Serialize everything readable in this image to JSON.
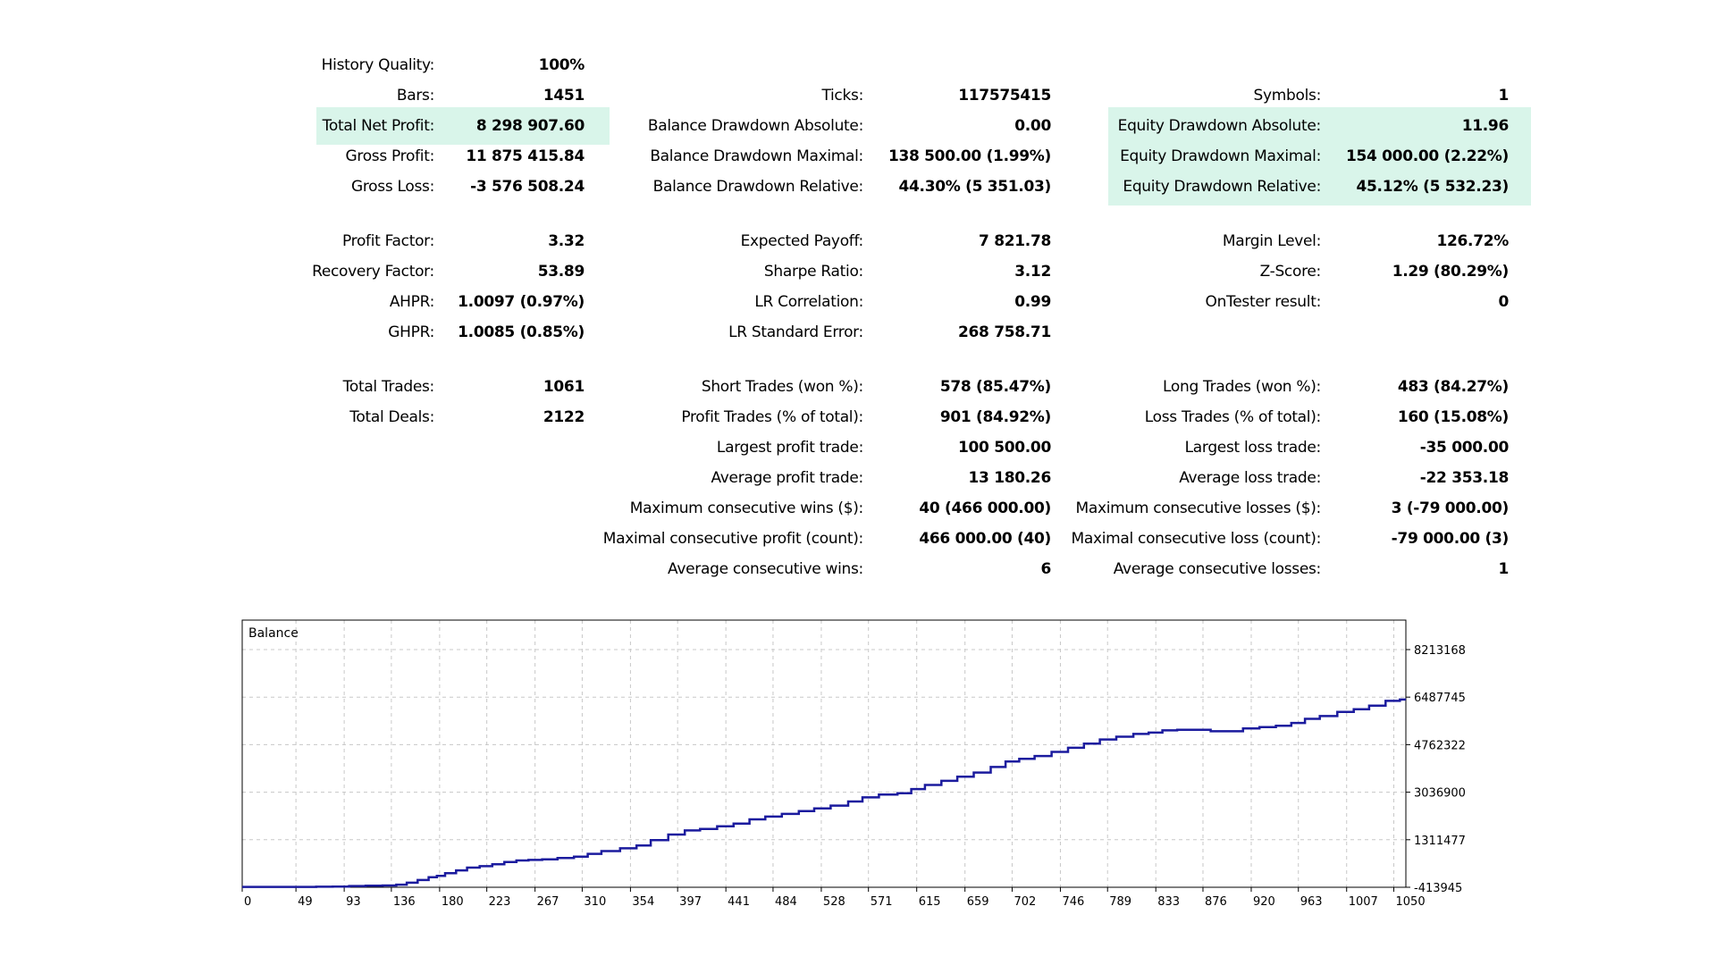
{
  "colors": {
    "highlight": "#d9f5ea",
    "balance_line": "#1b1b9e",
    "grid": "#c8c8c8"
  },
  "stats": {
    "history_quality": {
      "label": "History Quality:",
      "value": "100%"
    },
    "bars": {
      "label": "Bars:",
      "value": "1451"
    },
    "total_net_profit": {
      "label": "Total Net Profit:",
      "value": "8 298 907.60"
    },
    "gross_profit": {
      "label": "Gross Profit:",
      "value": "11 875 415.84"
    },
    "gross_loss": {
      "label": "Gross Loss:",
      "value": "-3 576 508.24"
    },
    "profit_factor": {
      "label": "Profit Factor:",
      "value": "3.32"
    },
    "recovery_factor": {
      "label": "Recovery Factor:",
      "value": "53.89"
    },
    "ahpr": {
      "label": "AHPR:",
      "value": "1.0097 (0.97%)"
    },
    "ghpr": {
      "label": "GHPR:",
      "value": "1.0085 (0.85%)"
    },
    "total_trades": {
      "label": "Total Trades:",
      "value": "1061"
    },
    "total_deals": {
      "label": "Total Deals:",
      "value": "2122"
    },
    "ticks": {
      "label": "Ticks:",
      "value": "117575415"
    },
    "balance_dd_absolute": {
      "label": "Balance Drawdown Absolute:",
      "value": "0.00"
    },
    "balance_dd_maximal": {
      "label": "Balance Drawdown Maximal:",
      "value": "138 500.00 (1.99%)"
    },
    "balance_dd_relative": {
      "label": "Balance Drawdown Relative:",
      "value": "44.30% (5 351.03)"
    },
    "expected_payoff": {
      "label": "Expected Payoff:",
      "value": "7 821.78"
    },
    "sharpe_ratio": {
      "label": "Sharpe Ratio:",
      "value": "3.12"
    },
    "lr_correlation": {
      "label": "LR Correlation:",
      "value": "0.99"
    },
    "lr_standard_error": {
      "label": "LR Standard Error:",
      "value": "268 758.71"
    },
    "short_trades": {
      "label": "Short Trades (won %):",
      "value": "578 (85.47%)"
    },
    "profit_trades": {
      "label": "Profit Trades (% of total):",
      "value": "901 (84.92%)"
    },
    "largest_profit_trade": {
      "label": "Largest profit trade:",
      "value": "100 500.00"
    },
    "average_profit_trade": {
      "label": "Average profit trade:",
      "value": "13 180.26"
    },
    "max_consecutive_wins": {
      "label": "Maximum consecutive wins ($):",
      "value": "40 (466 000.00)"
    },
    "maximal_consecutive_profit": {
      "label": "Maximal consecutive profit (count):",
      "value": "466 000.00 (40)"
    },
    "average_consecutive_wins": {
      "label": "Average consecutive wins:",
      "value": "6"
    },
    "symbols": {
      "label": "Symbols:",
      "value": "1"
    },
    "equity_dd_absolute": {
      "label": "Equity Drawdown Absolute:",
      "value": "11.96"
    },
    "equity_dd_maximal": {
      "label": "Equity Drawdown Maximal:",
      "value": "154 000.00 (2.22%)"
    },
    "equity_dd_relative": {
      "label": "Equity Drawdown Relative:",
      "value": "45.12% (5 532.23)"
    },
    "margin_level": {
      "label": "Margin Level:",
      "value": "126.72%"
    },
    "z_score": {
      "label": "Z-Score:",
      "value": "1.29 (80.29%)"
    },
    "ontester_result": {
      "label": "OnTester result:",
      "value": "0"
    },
    "long_trades": {
      "label": "Long Trades (won %):",
      "value": "483 (84.27%)"
    },
    "loss_trades": {
      "label": "Loss Trades (% of total):",
      "value": "160 (15.08%)"
    },
    "largest_loss_trade": {
      "label": "Largest loss trade:",
      "value": "-35 000.00"
    },
    "average_loss_trade": {
      "label": "Average loss trade:",
      "value": "-22 353.18"
    },
    "max_consecutive_losses": {
      "label": "Maximum consecutive losses ($):",
      "value": "3 (-79 000.00)"
    },
    "maximal_consecutive_loss": {
      "label": "Maximal consecutive loss (count):",
      "value": "-79 000.00 (3)"
    },
    "average_consecutive_losses": {
      "label": "Average consecutive losses:",
      "value": "1"
    }
  },
  "chart_data": {
    "type": "line",
    "title": "Balance",
    "xlabel": "",
    "ylabel": "",
    "x_ticks": [
      "0",
      "49",
      "93",
      "136",
      "180",
      "223",
      "267",
      "310",
      "354",
      "397",
      "441",
      "484",
      "528",
      "571",
      "615",
      "659",
      "702",
      "746",
      "789",
      "833",
      "876",
      "920",
      "963",
      "1007",
      "1050"
    ],
    "y_ticks": [
      "8213168",
      "6487745",
      "4762322",
      "3036900",
      "1311477",
      "-413945"
    ],
    "xlim": [
      0,
      1061
    ],
    "ylim": [
      -413945,
      8213168
    ],
    "grid": true,
    "series": [
      {
        "x": [
          0,
          20,
          40,
          60,
          75,
          90,
          105,
          120,
          136,
          145,
          155,
          165,
          175,
          180,
          190,
          200,
          210,
          223,
          233,
          245,
          255,
          267,
          280,
          295,
          310,
          320,
          335,
          354,
          365,
          380,
          397,
          410,
          425,
          441,
          455,
          470,
          484,
          500,
          515,
          528,
          545,
          560,
          571,
          590,
          605,
          615,
          630,
          645,
          659,
          675,
          690,
          702,
          715,
          730,
          746,
          760,
          775,
          789,
          805,
          820,
          833,
          845,
          860,
          876,
          890,
          905,
          920,
          935,
          950,
          963,
          975,
          990,
          1007,
          1020,
          1035,
          1050,
          1061
        ],
        "y": [
          -400000,
          -400000,
          -400000,
          -400000,
          -395000,
          -390000,
          -370000,
          -360000,
          -350000,
          -320000,
          -250000,
          -150000,
          -50000,
          0,
          100000,
          200000,
          300000,
          350000,
          420000,
          500000,
          560000,
          580000,
          600000,
          650000,
          700000,
          800000,
          900000,
          1000000,
          1100000,
          1300000,
          1500000,
          1650000,
          1700000,
          1800000,
          1900000,
          2050000,
          2150000,
          2250000,
          2350000,
          2450000,
          2550000,
          2700000,
          2850000,
          2950000,
          3000000,
          3150000,
          3300000,
          3450000,
          3600000,
          3750000,
          3950000,
          4150000,
          4250000,
          4350000,
          4500000,
          4650000,
          4800000,
          4950000,
          5050000,
          5150000,
          5200000,
          5280000,
          5300000,
          5300000,
          5250000,
          5250000,
          5350000,
          5400000,
          5450000,
          5550000,
          5700000,
          5800000,
          5950000,
          6050000,
          6180000,
          6350000,
          6400000
        ]
      }
    ]
  }
}
